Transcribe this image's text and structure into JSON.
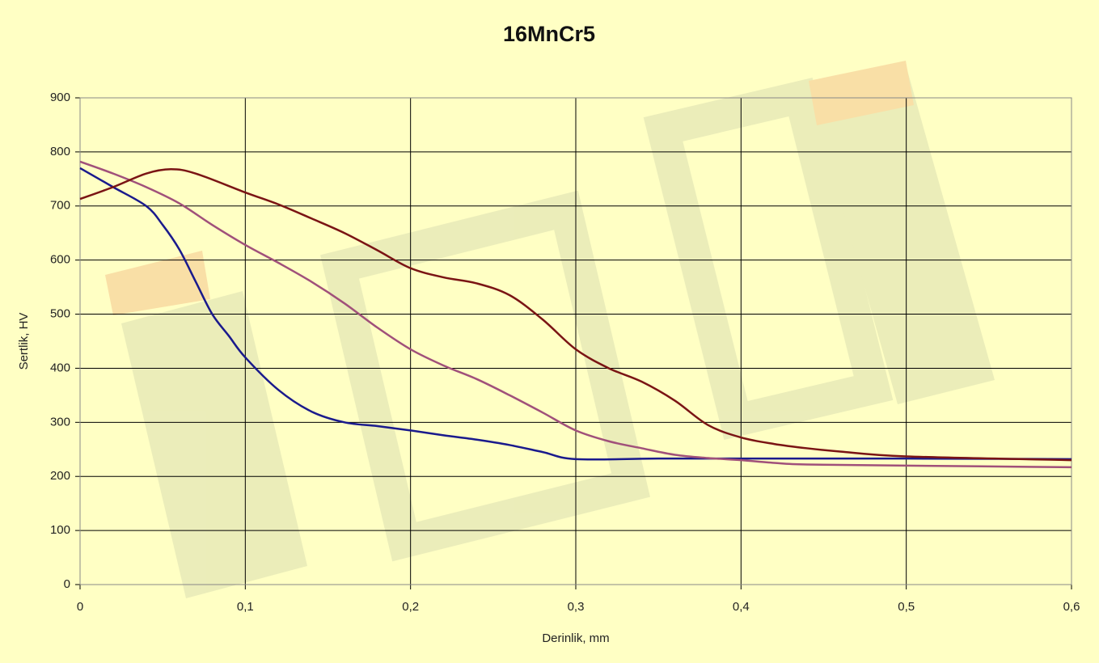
{
  "chart_data": {
    "type": "line",
    "title": "16MnCr5",
    "x_label": "Derinlik, mm",
    "y_label": "Sertlik, HV",
    "xlim": [
      0,
      0.6
    ],
    "xticks": [
      0,
      {
        "value": 0.1,
        "label": "0,1"
      },
      {
        "value": 0.2,
        "label": "0,2"
      },
      {
        "value": 0.3,
        "label": "0,3"
      },
      {
        "value": 0.4,
        "label": "0,4"
      },
      {
        "value": 0.5,
        "label": "0,5"
      },
      {
        "value": 0.6,
        "label": "0,6"
      }
    ],
    "ylim": [
      0,
      900
    ],
    "yticks": [
      0,
      100,
      200,
      300,
      400,
      500,
      600,
      700,
      800,
      900
    ],
    "grid": true,
    "series": [
      {
        "color": "#1a1a8c",
        "x": [
          0,
          0.02,
          0.04,
          0.05,
          0.06,
          0.07,
          0.08,
          0.09,
          0.1,
          0.12,
          0.14,
          0.16,
          0.18,
          0.2,
          0.22,
          0.24,
          0.26,
          0.28,
          0.3,
          0.35,
          0.4,
          0.5,
          0.6
        ],
        "values": [
          770,
          735,
          700,
          665,
          620,
          560,
          500,
          460,
          420,
          360,
          320,
          300,
          293,
          285,
          276,
          268,
          258,
          245,
          232,
          233,
          233,
          233,
          232
        ]
      },
      {
        "color": "#a0507a",
        "x": [
          0,
          0.02,
          0.04,
          0.06,
          0.08,
          0.1,
          0.12,
          0.14,
          0.16,
          0.18,
          0.2,
          0.22,
          0.24,
          0.26,
          0.28,
          0.3,
          0.32,
          0.34,
          0.36,
          0.38,
          0.4,
          0.42,
          0.44,
          0.5,
          0.6
        ],
        "values": [
          782,
          760,
          735,
          705,
          665,
          628,
          595,
          560,
          520,
          475,
          435,
          405,
          380,
          350,
          318,
          285,
          265,
          252,
          240,
          234,
          230,
          225,
          222,
          220,
          217
        ]
      },
      {
        "color": "#7a1414",
        "x": [
          0,
          0.02,
          0.04,
          0.055,
          0.07,
          0.1,
          0.12,
          0.14,
          0.16,
          0.18,
          0.2,
          0.22,
          0.24,
          0.26,
          0.28,
          0.3,
          0.32,
          0.34,
          0.36,
          0.38,
          0.4,
          0.42,
          0.44,
          0.46,
          0.5,
          0.6
        ],
        "values": [
          713,
          735,
          760,
          768,
          760,
          725,
          703,
          677,
          650,
          618,
          585,
          568,
          557,
          535,
          490,
          435,
          400,
          375,
          340,
          295,
          272,
          260,
          252,
          246,
          237,
          230
        ]
      }
    ]
  }
}
